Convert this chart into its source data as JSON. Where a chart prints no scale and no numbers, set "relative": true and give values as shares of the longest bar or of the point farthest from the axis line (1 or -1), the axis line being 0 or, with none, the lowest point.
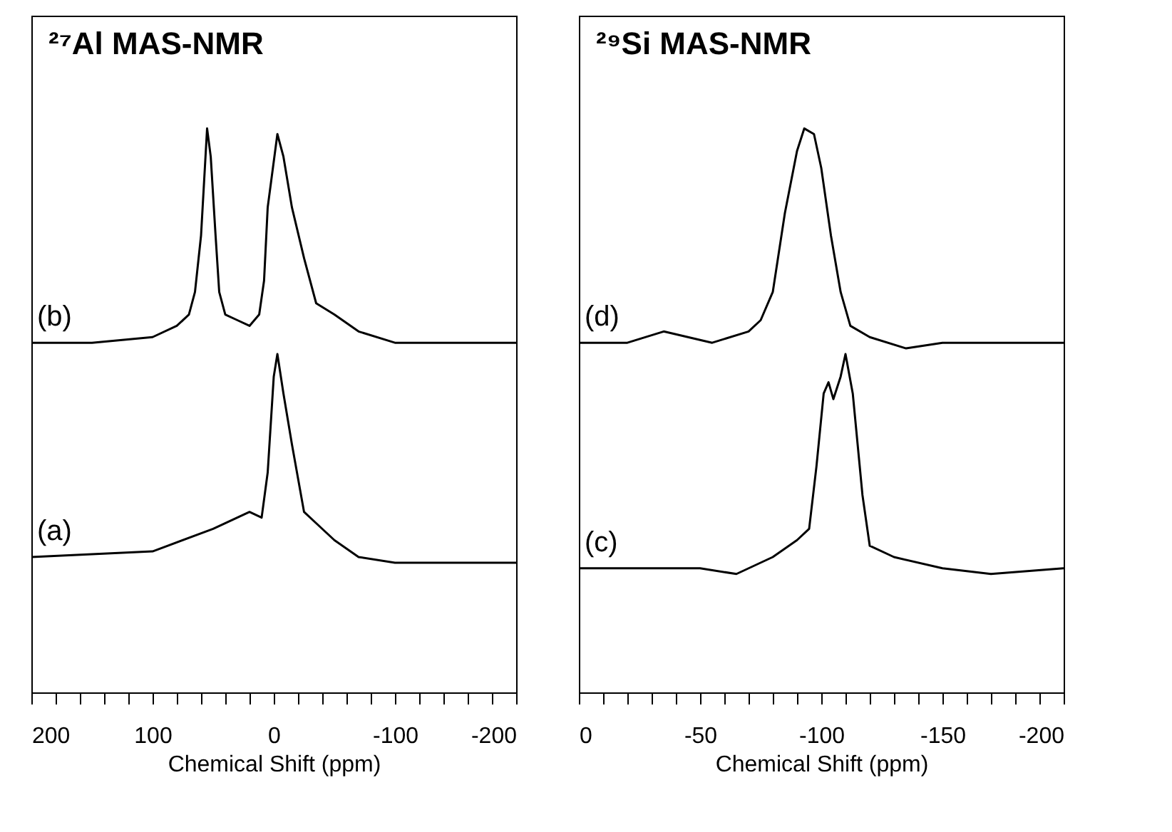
{
  "chart_data": [
    {
      "type": "line",
      "title": "²⁷Al MAS-NMR",
      "xlabel": "Chemical Shift (ppm)",
      "relative": true,
      "xlim": [
        200,
        -200
      ],
      "xticks": [
        200,
        {
          "value": 180,
          "label": null
        },
        {
          "value": 160,
          "label": null
        },
        {
          "value": 140,
          "label": null
        },
        {
          "value": 120,
          "label": null
        },
        100,
        {
          "value": 80,
          "label": null
        },
        {
          "value": 60,
          "label": null
        },
        {
          "value": 40,
          "label": null
        },
        {
          "value": 20,
          "label": null
        },
        0,
        {
          "value": -20,
          "label": null
        },
        {
          "value": -40,
          "label": null
        },
        {
          "value": -60,
          "label": null
        },
        {
          "value": -80,
          "label": null
        },
        -100,
        {
          "value": -120,
          "label": null
        },
        {
          "value": -140,
          "label": null
        },
        {
          "value": -160,
          "label": null
        },
        {
          "value": -180,
          "label": null
        },
        -200
      ],
      "series": [
        {
          "name": "(b)",
          "color": "#000000",
          "x": [
            200,
            150,
            100,
            80,
            70,
            65,
            60,
            55,
            52,
            48,
            45,
            40,
            30,
            20,
            12,
            8,
            5,
            -3,
            -8,
            -15,
            -25,
            -35,
            -50,
            -70,
            -100,
            -200
          ],
          "values": [
            0.62,
            0.62,
            0.63,
            0.65,
            0.67,
            0.71,
            0.81,
            1.0,
            0.95,
            0.81,
            0.71,
            0.67,
            0.66,
            0.65,
            0.67,
            0.73,
            0.86,
            0.99,
            0.95,
            0.86,
            0.77,
            0.69,
            0.67,
            0.64,
            0.62,
            0.62
          ]
        },
        {
          "name": "(a)",
          "color": "#000000",
          "x": [
            200,
            100,
            50,
            20,
            10,
            5,
            0,
            -3,
            -8,
            -15,
            -25,
            -35,
            -50,
            -70,
            -100,
            -200
          ],
          "values": [
            0.24,
            0.25,
            0.29,
            0.32,
            0.31,
            0.39,
            0.56,
            0.6,
            0.53,
            0.44,
            0.32,
            0.3,
            0.27,
            0.24,
            0.23,
            0.23
          ]
        }
      ]
    },
    {
      "type": "line",
      "title": "²⁹Si MAS-NMR",
      "xlabel": "Chemical Shift (ppm)",
      "relative": true,
      "xlim": [
        0,
        -200
      ],
      "xticks": [
        0,
        {
          "value": -10,
          "label": null
        },
        {
          "value": -20,
          "label": null
        },
        {
          "value": -30,
          "label": null
        },
        {
          "value": -40,
          "label": null
        },
        -50,
        {
          "value": -60,
          "label": null
        },
        {
          "value": -70,
          "label": null
        },
        {
          "value": -80,
          "label": null
        },
        {
          "value": -90,
          "label": null
        },
        -100,
        {
          "value": -110,
          "label": null
        },
        {
          "value": -120,
          "label": null
        },
        {
          "value": -130,
          "label": null
        },
        {
          "value": -140,
          "label": null
        },
        -150,
        {
          "value": -160,
          "label": null
        },
        {
          "value": -170,
          "label": null
        },
        {
          "value": -180,
          "label": null
        },
        {
          "value": -190,
          "label": null
        },
        -200
      ],
      "series": [
        {
          "name": "(d)",
          "color": "#000000",
          "x": [
            0,
            -20,
            -35,
            -55,
            -70,
            -75,
            -80,
            -85,
            -90,
            -93,
            -97,
            -100,
            -104,
            -108,
            -112,
            -120,
            -135,
            -150,
            -180,
            -200
          ],
          "values": [
            0.62,
            0.62,
            0.64,
            0.62,
            0.64,
            0.66,
            0.71,
            0.85,
            0.96,
            1.0,
            0.99,
            0.93,
            0.81,
            0.71,
            0.65,
            0.63,
            0.61,
            0.62,
            0.62,
            0.62
          ]
        },
        {
          "name": "(c)",
          "color": "#000000",
          "x": [
            0,
            -30,
            -50,
            -65,
            -80,
            -90,
            -95,
            -98,
            -101,
            -103,
            -105,
            -108,
            -110,
            -113,
            -117,
            -120,
            -130,
            -150,
            -170,
            -200
          ],
          "values": [
            0.22,
            0.22,
            0.22,
            0.21,
            0.24,
            0.27,
            0.29,
            0.4,
            0.53,
            0.55,
            0.52,
            0.56,
            0.6,
            0.53,
            0.35,
            0.26,
            0.24,
            0.22,
            0.21,
            0.22
          ]
        }
      ]
    }
  ]
}
